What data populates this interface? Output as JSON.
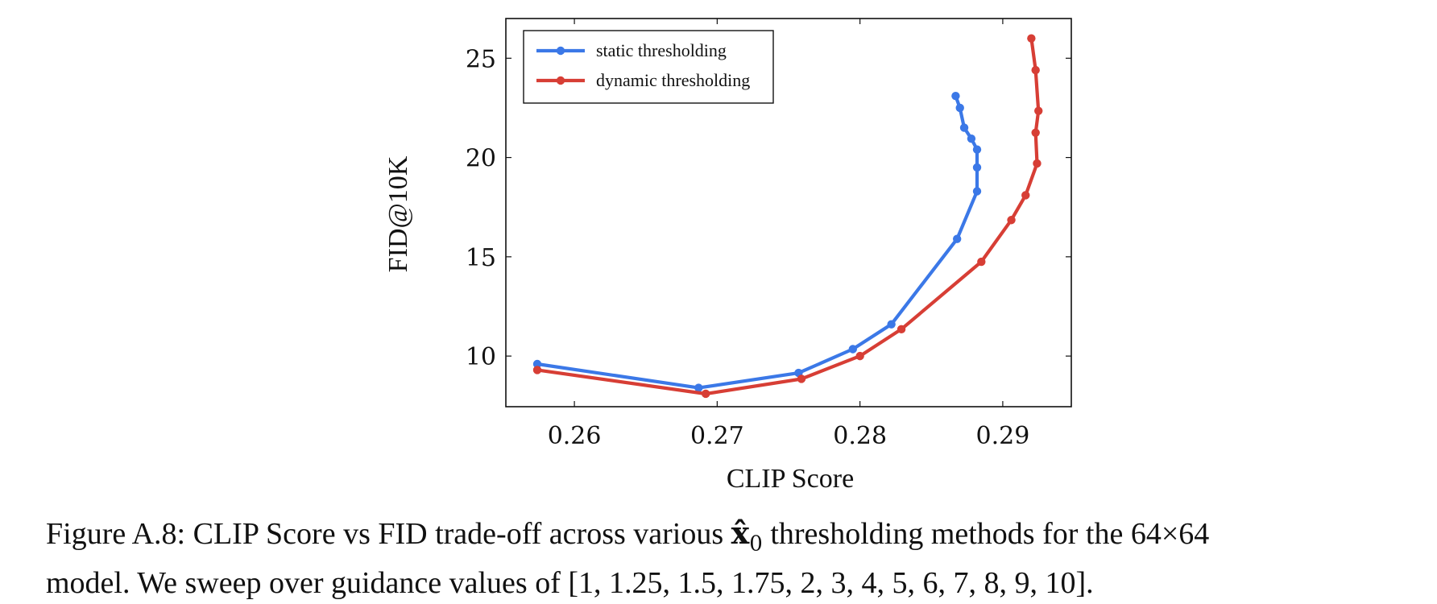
{
  "chart_data": {
    "type": "line",
    "xlabel": "CLIP Score",
    "ylabel": "FID@10K",
    "xlim": [
      0.2552,
      0.2948
    ],
    "ylim": [
      7.45,
      27.0
    ],
    "xticks": [
      0.26,
      0.27,
      0.28,
      0.29
    ],
    "xtick_labels": [
      "0.26",
      "0.27",
      "0.28",
      "0.29"
    ],
    "yticks": [
      10,
      15,
      20,
      25
    ],
    "ytick_labels": [
      "10",
      "15",
      "20",
      "25"
    ],
    "grid": false,
    "legend_position": "top-left",
    "series": [
      {
        "name": "static thresholding",
        "color": "#3b78e7",
        "x": [
          0.2574,
          0.2687,
          0.2757,
          0.2795,
          0.2822,
          0.2868,
          0.2882,
          0.2882,
          0.2882,
          0.2878,
          0.2873,
          0.287,
          0.2867
        ],
        "y": [
          9.6,
          8.4,
          9.15,
          10.35,
          11.6,
          15.9,
          18.3,
          19.5,
          20.4,
          20.95,
          21.5,
          22.5,
          23.1
        ]
      },
      {
        "name": "dynamic thresholding",
        "color": "#d73e35",
        "x": [
          0.2574,
          0.2692,
          0.2759,
          0.28,
          0.2829,
          0.2885,
          0.2906,
          0.2916,
          0.2924,
          0.2923,
          0.2925,
          0.2923,
          0.292
        ],
        "y": [
          9.3,
          8.1,
          8.85,
          10.0,
          11.35,
          14.75,
          16.85,
          18.1,
          19.7,
          21.25,
          22.35,
          24.4,
          26.0
        ]
      }
    ]
  },
  "caption": {
    "line1_before": "Figure A.8: CLIP Score vs FID trade-off across various ",
    "symbol": "x̂",
    "subscript": "0",
    "line1_after": " thresholding methods for the 64×64",
    "line2": "model. We sweep over guidance values of [1, 1.25, 1.5, 1.75, 2, 3, 4, 5, 6, 7, 8, 9, 10]."
  }
}
